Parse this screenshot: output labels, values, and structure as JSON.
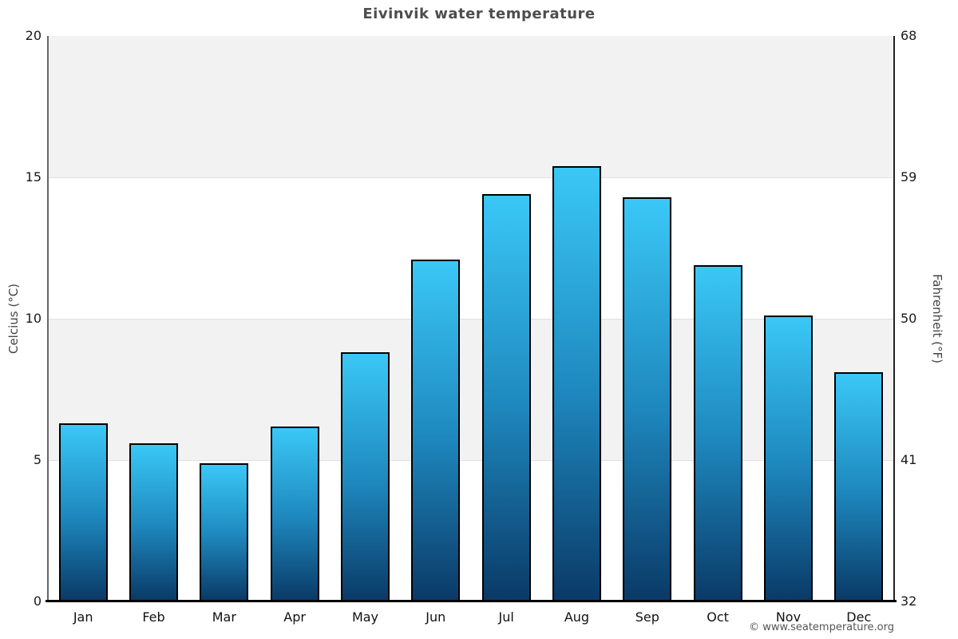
{
  "page": {
    "attribution": "© www.seatemperature.org"
  },
  "colors": {
    "band_gray": "#f2f2f2",
    "band_white": "#ffffff",
    "gridline": "#e0e0e0",
    "bar_gradient_top": "#3ac8f6",
    "bar_gradient_mid": "#1e88be",
    "bar_gradient_bottom": "#0a3a67",
    "bar_border": "#000000",
    "title_text": "#4d4d4d"
  },
  "chart_data": {
    "type": "bar",
    "title": "Eivinvik water temperature",
    "categories": [
      "Jan",
      "Feb",
      "Mar",
      "Apr",
      "May",
      "Jun",
      "Jul",
      "Aug",
      "Sep",
      "Oct",
      "Nov",
      "Dec"
    ],
    "values": [
      6.3,
      5.6,
      4.9,
      6.2,
      8.8,
      12.1,
      14.4,
      15.4,
      14.3,
      11.9,
      10.1,
      8.1
    ],
    "unit": "°C",
    "xlabel": "",
    "ylabel_left": "Celcius (°C)",
    "ylabel_right": "Fahrenheit (°F)",
    "ylim": [
      0,
      20
    ],
    "y_ticks_celsius": [
      0,
      5,
      10,
      15,
      20
    ],
    "y_ticks_fahrenheit": [
      32,
      41,
      50,
      59,
      68
    ],
    "grid": "horizontal-bands",
    "legend": "none"
  }
}
